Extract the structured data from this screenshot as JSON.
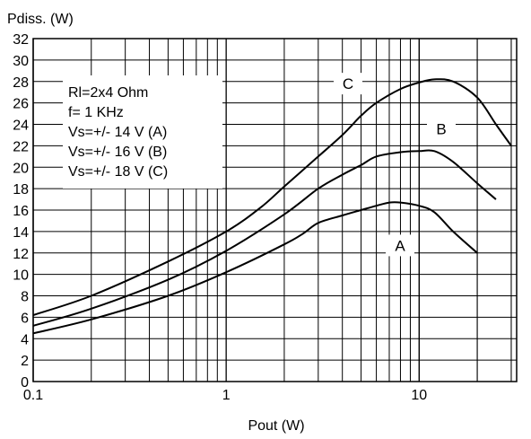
{
  "chart_data": {
    "type": "line",
    "ylabel": "Pdiss. (W)",
    "xlabel": "Pout (W)",
    "x_scale": "log",
    "xlim": [
      0.1,
      32
    ],
    "ylim": [
      0,
      32
    ],
    "x_tick_labels": [
      {
        "value": 0.1,
        "label": "0.1"
      },
      {
        "value": 1,
        "label": "1"
      },
      {
        "value": 10,
        "label": "10"
      }
    ],
    "y_ticks": [
      0,
      2,
      4,
      6,
      8,
      10,
      12,
      14,
      16,
      18,
      20,
      22,
      24,
      26,
      28,
      30,
      32
    ],
    "grid": true,
    "annotation_lines": [
      "Rl=2x4 Ohm",
      "f= 1 KHz",
      "Vs=+/- 14 V (A)",
      "Vs=+/- 16 V (B)",
      "Vs=+/- 18 V (C)"
    ],
    "series": [
      {
        "name": "A",
        "x": [
          0.1,
          0.2,
          0.5,
          1,
          2,
          2.5,
          3,
          4,
          5,
          6,
          7,
          8,
          10,
          12,
          15,
          20
        ],
        "y": [
          4.5,
          5.8,
          8.0,
          10.2,
          12.8,
          13.8,
          14.8,
          15.5,
          16.0,
          16.4,
          16.7,
          16.7,
          16.4,
          15.8,
          14.0,
          12.0
        ]
      },
      {
        "name": "B",
        "x": [
          0.1,
          0.2,
          0.5,
          1,
          2,
          3,
          4,
          5,
          6,
          8,
          10,
          12,
          15,
          20,
          25
        ],
        "y": [
          5.2,
          6.8,
          9.5,
          12.2,
          15.6,
          18.0,
          19.3,
          20.2,
          21.0,
          21.4,
          21.5,
          21.5,
          20.5,
          18.5,
          17.0
        ]
      },
      {
        "name": "C",
        "x": [
          0.1,
          0.2,
          0.5,
          1,
          1.5,
          2,
          3,
          4,
          5,
          6,
          8,
          10,
          12,
          15,
          20,
          25,
          30
        ],
        "y": [
          6.2,
          8.0,
          11.2,
          14.0,
          16.2,
          18.2,
          21.0,
          23.0,
          24.8,
          26.0,
          27.3,
          27.9,
          28.2,
          28.0,
          26.5,
          24.0,
          22.0
        ]
      }
    ]
  }
}
